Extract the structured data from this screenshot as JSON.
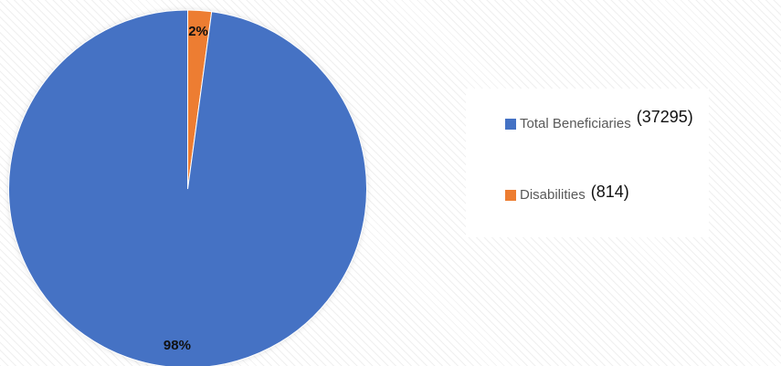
{
  "chart_data": {
    "type": "pie",
    "title": "",
    "start_angle_deg": 0,
    "direction": "clockwise",
    "legend_position": "right",
    "slices": [
      {
        "label": "Disabilities",
        "value": 814,
        "count_text": "(814)",
        "percent_label": "2%",
        "color": "#ED7D31"
      },
      {
        "label": "Total Beneficiaries",
        "value": 37295,
        "count_text": "(37295)",
        "percent_label": "98%",
        "color": "#4472C4"
      }
    ],
    "legend": [
      {
        "label": "Total Beneficiaries",
        "count_text": "(37295)",
        "color": "#4472C4"
      },
      {
        "label": "Disabilities",
        "count_text": "(814)",
        "color": "#ED7D31"
      }
    ]
  }
}
